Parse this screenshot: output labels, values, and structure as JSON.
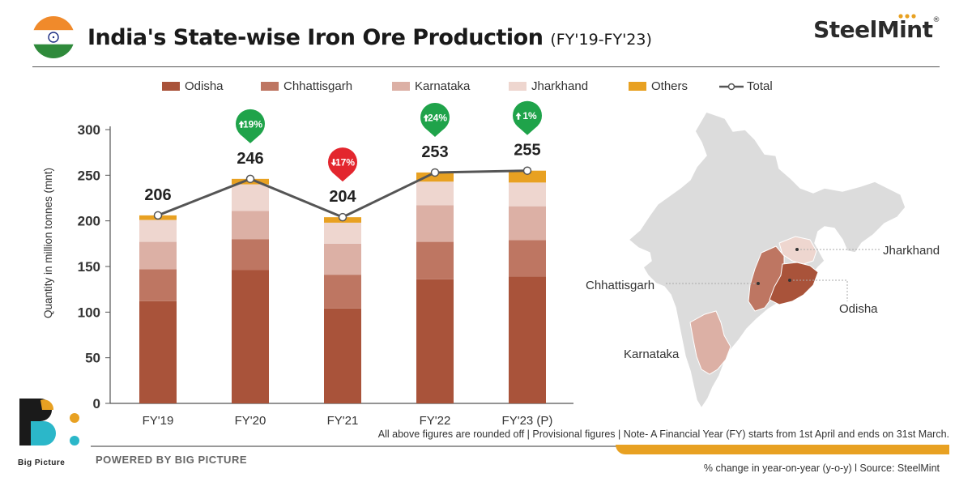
{
  "header": {
    "title": "India's State-wise Iron Ore Production",
    "subtitle": "(FY'19-FY'23)",
    "brand": "SteelMint",
    "brand_mark": "®"
  },
  "colors": {
    "odisha": "#a9533a",
    "chhattisgarh": "#be7662",
    "karnataka": "#dcb0a5",
    "jharkhand": "#eed6cf",
    "others": "#e8a122",
    "total_line": "#555555",
    "up": "#1fa34a",
    "down": "#e3262e"
  },
  "chart_data": {
    "type": "bar",
    "stacked": true,
    "categories": [
      "FY'19",
      "FY'20",
      "FY'21",
      "FY'22",
      "FY'23 (P)"
    ],
    "series": [
      {
        "name": "Odisha",
        "values": [
          112,
          146,
          104,
          136,
          139
        ]
      },
      {
        "name": "Chhattisgarh",
        "values": [
          35,
          34,
          37,
          41,
          40
        ]
      },
      {
        "name": "Karnataka",
        "values": [
          30,
          31,
          34,
          40,
          37
        ]
      },
      {
        "name": "Jharkhand",
        "values": [
          24,
          29,
          23,
          26,
          26
        ]
      },
      {
        "name": "Others",
        "values": [
          5,
          6,
          6,
          10,
          13
        ]
      }
    ],
    "total": {
      "name": "Total",
      "values": [
        206,
        246,
        204,
        253,
        255
      ]
    },
    "changes": [
      {
        "index": 1,
        "label": "19%",
        "dir": "up"
      },
      {
        "index": 2,
        "label": "17%",
        "dir": "down"
      },
      {
        "index": 3,
        "label": "24%",
        "dir": "up"
      },
      {
        "index": 4,
        "label": "1%",
        "dir": "up"
      }
    ],
    "ylabel": "Quantity in million tonnes (mnt)",
    "ylim": [
      0,
      300
    ],
    "yticks": [
      0,
      50,
      100,
      150,
      200,
      250,
      300
    ],
    "legend_position": "top"
  },
  "map": {
    "labels": [
      "Jharkhand",
      "Chhattisgarh",
      "Odisha",
      "Karnataka"
    ]
  },
  "footer": {
    "note": "All above figures are rounded off  |   Provisional figures  |  Note- A Financial Year (FY) starts from 1st April and ends on 31st March.",
    "powered": "POWERED BY BIG PICTURE",
    "logo_text": "Big Picture",
    "source": "% change in year-on-year (y-o-y)  l  Source: SteelMint"
  }
}
